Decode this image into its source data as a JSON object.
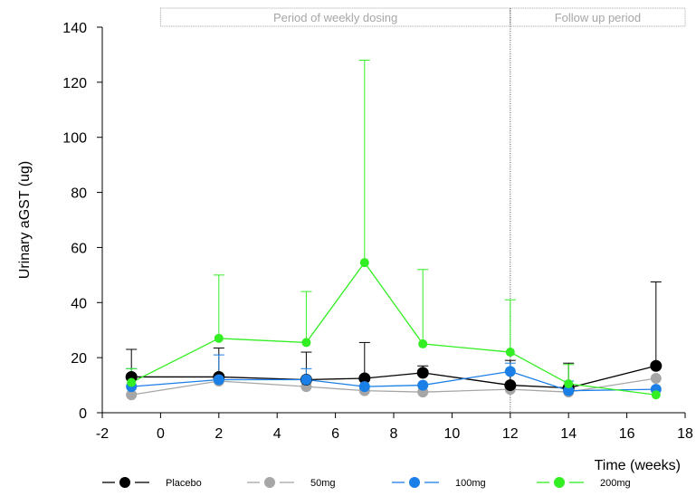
{
  "chart_data": {
    "type": "line",
    "xlabel": "Time  (weeks)",
    "ylabel": "Urinary aGST (ug)",
    "xlim": [
      -2,
      18
    ],
    "ylim": [
      0,
      140
    ],
    "xticks": [
      -2,
      0,
      2,
      4,
      6,
      8,
      10,
      12,
      14,
      16,
      18
    ],
    "yticks": [
      0,
      20,
      40,
      60,
      80,
      100,
      120,
      140
    ],
    "grid": false,
    "legend_position": "bottom",
    "x": [
      -1,
      2,
      5,
      7,
      9,
      12,
      14,
      17
    ],
    "periods": [
      {
        "label": "Period of weekly dosing",
        "x_start": 0,
        "x_end": 12
      },
      {
        "label": "Follow up period",
        "x_start": 12,
        "x_end": 18
      }
    ],
    "series": [
      {
        "name": "Placebo",
        "color": "#000000",
        "values": [
          13,
          13,
          12,
          12.5,
          14.5,
          10,
          9,
          17
        ],
        "error_upper": [
          23,
          23.5,
          22,
          25.5,
          17,
          19,
          18,
          47.5
        ]
      },
      {
        "name": "50mg",
        "color": "#a6a6a6",
        "values": [
          6.5,
          11.5,
          9.5,
          8,
          7.5,
          8.5,
          7.5,
          12.5
        ],
        "error_upper": [
          null,
          null,
          null,
          null,
          null,
          null,
          null,
          null
        ]
      },
      {
        "name": "100mg",
        "color": "#1a7fe6",
        "values": [
          9.5,
          12,
          12,
          9.5,
          10,
          15,
          8,
          8.5
        ],
        "error_upper": [
          16,
          21,
          16,
          null,
          null,
          18,
          11.5,
          null
        ]
      },
      {
        "name": "200mg",
        "color": "#33ee22",
        "values": [
          11,
          27,
          25.5,
          54.5,
          25,
          22,
          10.5,
          6.5
        ],
        "error_upper": [
          16,
          50,
          44,
          128,
          52,
          41,
          17.5,
          null
        ]
      }
    ]
  }
}
